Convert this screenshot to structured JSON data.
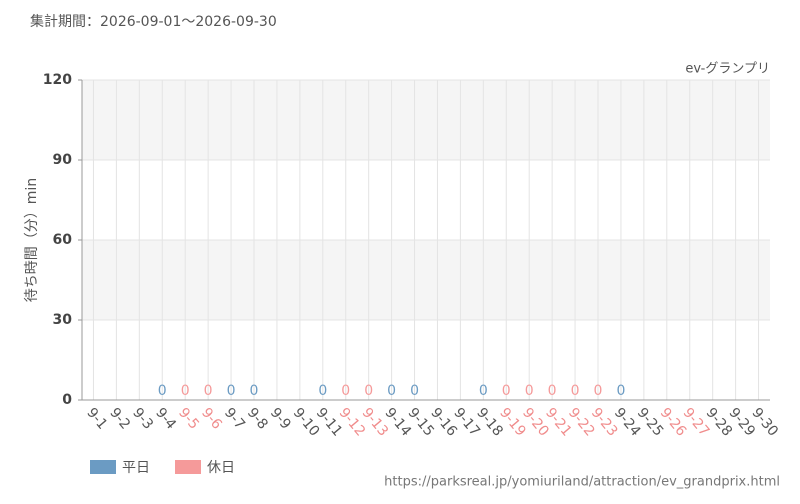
{
  "header": "集計期間：2026-09-01～2026-09-30",
  "footer": "https://parksreal.jp/yomiuriland/attraction/ev_grandprix.html",
  "chart_data": {
    "type": "bar",
    "subtitle": "ev-グランプリ",
    "y_label": "待ち時間（分）min",
    "categories": [
      "9-1",
      "9-2",
      "9-3",
      "9-4",
      "9-5",
      "9-6",
      "9-7",
      "9-8",
      "9-9",
      "9-10",
      "9-11",
      "9-12",
      "9-13",
      "9-14",
      "9-15",
      "9-16",
      "9-17",
      "9-18",
      "9-19",
      "9-20",
      "9-21",
      "9-22",
      "9-23",
      "9-24",
      "9-25",
      "9-26",
      "9-27",
      "9-28",
      "9-29",
      "9-30"
    ],
    "category_label_colors": [
      "#555",
      "#555",
      "#555",
      "#555",
      "#f08c8c",
      "#f08c8c",
      "#555",
      "#555",
      "#555",
      "#555",
      "#555",
      "#f08c8c",
      "#f08c8c",
      "#555",
      "#555",
      "#555",
      "#555",
      "#555",
      "#f08c8c",
      "#f08c8c",
      "#f08c8c",
      "#f08c8c",
      "#f08c8c",
      "#555",
      "#555",
      "#f08c8c",
      "#f08c8c",
      "#555",
      "#555",
      "#555"
    ],
    "series": [
      {
        "name": "平日",
        "color": "#6b9bc3",
        "values": [
          null,
          null,
          null,
          0,
          null,
          null,
          0,
          0,
          null,
          null,
          0,
          null,
          null,
          0,
          0,
          null,
          null,
          0,
          null,
          null,
          null,
          null,
          null,
          0,
          null,
          null,
          null,
          null,
          null,
          null
        ]
      },
      {
        "name": "休日",
        "color": "#f59a9a",
        "values": [
          null,
          null,
          null,
          null,
          0,
          0,
          null,
          null,
          null,
          null,
          null,
          0,
          0,
          null,
          null,
          null,
          null,
          null,
          0,
          0,
          0,
          0,
          0,
          null,
          null,
          null,
          null,
          null,
          null,
          null
        ]
      }
    ],
    "ylim": [
      0,
      120
    ],
    "yticks": [
      0,
      30,
      60,
      90,
      120
    ],
    "grid": true
  }
}
